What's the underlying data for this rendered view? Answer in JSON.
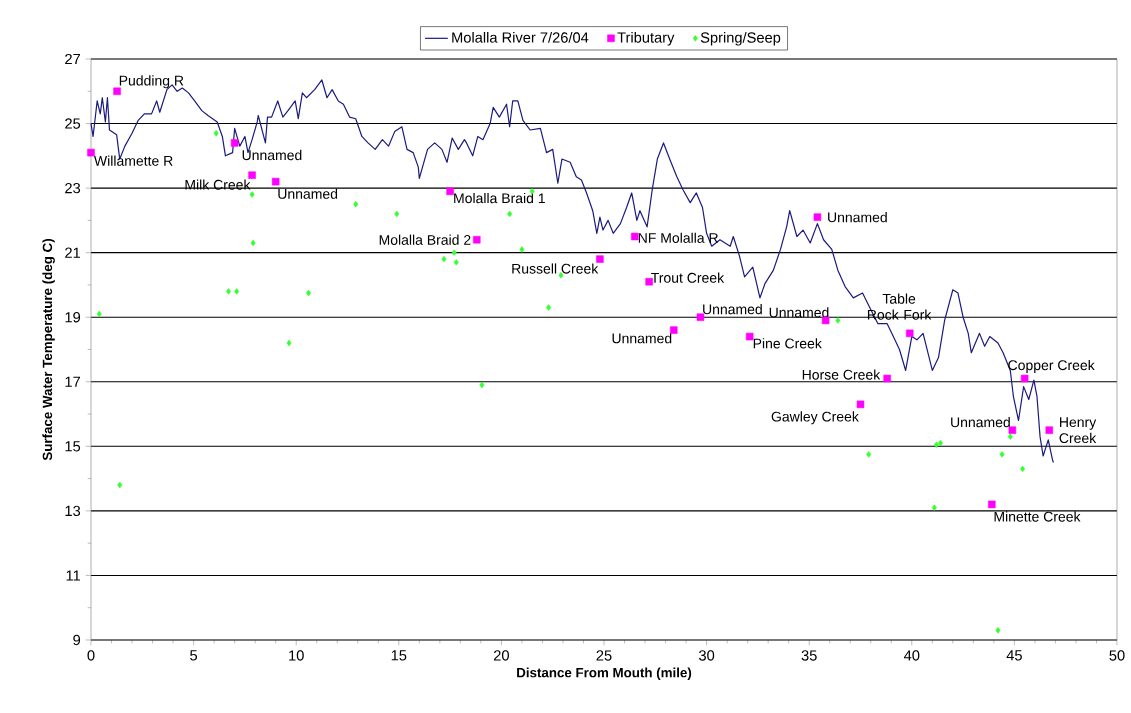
{
  "chart_data": {
    "type": "line",
    "xlabel": "Distance From Mouth (mile)",
    "ylabel": "Surface Water Temperature (deg C)",
    "xlim": [
      0,
      50
    ],
    "ylim": [
      9,
      27
    ],
    "xticks": [
      0,
      5,
      10,
      15,
      20,
      25,
      30,
      35,
      40,
      45,
      50
    ],
    "yticks": [
      9,
      11,
      13,
      15,
      17,
      19,
      21,
      23,
      25,
      27
    ],
    "grid": "y",
    "legend": "top",
    "series": [
      {
        "name": "Molalla River 7/26/04",
        "color": "#1a1a80",
        "marker": "none",
        "line_style": "solid",
        "x": [
          0,
          0.1,
          0.3,
          0.45,
          0.55,
          0.7,
          0.8,
          0.9,
          1.25,
          1.4,
          1.65,
          2.0,
          2.3,
          2.6,
          2.95,
          3.2,
          3.35,
          3.7,
          3.95,
          4.2,
          4.45,
          4.75,
          5.05,
          5.4,
          5.7,
          6.15,
          6.4,
          6.55,
          6.9,
          7.0,
          7.25,
          7.5,
          7.65,
          7.85,
          8.1,
          8.15,
          8.5,
          8.6,
          8.8,
          9.1,
          9.35,
          9.6,
          9.95,
          10.1,
          10.3,
          10.5,
          10.9,
          11.25,
          11.5,
          11.75,
          12.05,
          12.3,
          12.6,
          12.9,
          13.2,
          13.5,
          13.85,
          14.2,
          14.5,
          14.8,
          15.15,
          15.4,
          15.7,
          15.95,
          16.0,
          16.4,
          16.75,
          17.1,
          17.35,
          17.6,
          17.9,
          18.2,
          18.3,
          18.6,
          18.85,
          19.1,
          19.45,
          19.6,
          19.9,
          20.25,
          20.4,
          20.55,
          20.8,
          21.05,
          21.4,
          21.9,
          22.2,
          22.5,
          22.75,
          22.95,
          23.35,
          23.65,
          23.9,
          24.15,
          24.45,
          24.65,
          24.8,
          24.95,
          25.2,
          25.45,
          25.8,
          26.1,
          26.35,
          26.6,
          26.75,
          27.1,
          27.35,
          27.6,
          27.9,
          28.2,
          28.55,
          28.85,
          29.2,
          29.5,
          29.8,
          30.0,
          30.25,
          30.65,
          31.15,
          31.3,
          31.6,
          31.85,
          32.25,
          32.6,
          32.85,
          33.25,
          33.6,
          33.9,
          34.05,
          34.4,
          34.7,
          35.05,
          35.4,
          35.7,
          36.1,
          36.4,
          36.75,
          37.15,
          37.6,
          37.95,
          38.35,
          38.8,
          39.1,
          39.4,
          39.7,
          40.0,
          40.25,
          40.55,
          41.0,
          41.3,
          41.6,
          42.0,
          42.25,
          42.5,
          42.75,
          42.9,
          43.3,
          43.55,
          43.8,
          44.2,
          44.45,
          44.8,
          44.95,
          45.2,
          45.45,
          45.7,
          45.95,
          46.1,
          46.25,
          46.4,
          46.65,
          46.85,
          46.9
        ],
        "values": [
          25.0,
          24.6,
          25.7,
          25.3,
          25.8,
          25.05,
          25.8,
          24.8,
          24.65,
          23.9,
          24.3,
          24.7,
          25.1,
          25.3,
          25.3,
          25.7,
          25.35,
          26.05,
          26.2,
          26.0,
          26.1,
          25.95,
          25.7,
          25.4,
          25.25,
          25.05,
          24.6,
          24.0,
          24.1,
          24.85,
          24.3,
          24.6,
          24.1,
          24.5,
          25.05,
          25.25,
          24.4,
          25.2,
          25.2,
          25.7,
          25.2,
          25.4,
          25.7,
          25.15,
          25.95,
          25.8,
          26.05,
          26.35,
          25.8,
          26.05,
          25.7,
          25.6,
          25.2,
          25.15,
          24.6,
          24.4,
          24.2,
          24.5,
          24.3,
          24.75,
          24.9,
          24.2,
          24.1,
          23.65,
          23.3,
          24.2,
          24.4,
          24.2,
          23.8,
          24.55,
          24.2,
          24.5,
          24.4,
          24.0,
          24.6,
          24.5,
          25.0,
          25.5,
          25.2,
          25.6,
          24.9,
          25.7,
          25.7,
          25.1,
          24.8,
          24.85,
          24.1,
          24.2,
          23.15,
          23.9,
          23.8,
          23.35,
          23.25,
          22.85,
          22.3,
          21.6,
          22.1,
          21.7,
          22.0,
          21.6,
          21.9,
          22.4,
          22.85,
          22.0,
          22.3,
          21.8,
          22.95,
          23.9,
          24.4,
          23.9,
          23.35,
          22.95,
          22.55,
          22.85,
          22.4,
          21.6,
          21.2,
          21.4,
          21.2,
          21.5,
          20.9,
          20.25,
          20.55,
          19.6,
          20.05,
          20.45,
          21.1,
          21.8,
          22.3,
          21.5,
          21.7,
          21.3,
          21.9,
          21.4,
          21.1,
          20.45,
          19.95,
          19.6,
          19.75,
          19.3,
          18.8,
          18.8,
          18.4,
          18.0,
          17.35,
          18.4,
          18.3,
          18.5,
          17.35,
          17.75,
          18.9,
          19.85,
          19.75,
          19.0,
          18.5,
          17.9,
          18.5,
          18.1,
          18.4,
          18.2,
          17.9,
          17.35,
          16.55,
          15.8,
          16.85,
          16.45,
          17.05,
          16.55,
          15.3,
          14.7,
          15.2,
          14.6,
          14.5
        ]
      },
      {
        "name": "Tributary",
        "type": "scatter",
        "color": "#ff00ff",
        "marker": "square",
        "x": [
          0,
          1.27,
          7.0,
          7.85,
          9.0,
          17.5,
          18.8,
          24.8,
          26.5,
          27.2,
          28.4,
          29.7,
          32.1,
          35.4,
          35.8,
          39.9,
          38.8,
          37.5,
          45.5,
          44.9,
          46.7,
          43.9
        ],
        "values": [
          24.1,
          26.0,
          24.4,
          23.4,
          23.2,
          22.9,
          21.4,
          20.8,
          21.5,
          20.1,
          18.6,
          19.0,
          18.4,
          22.1,
          18.9,
          18.5,
          17.1,
          16.3,
          17.1,
          15.5,
          15.5,
          13.2
        ]
      },
      {
        "name": "Spring/Seep",
        "type": "scatter",
        "color": "#33ff33",
        "marker": "diamond",
        "x": [
          0.4,
          1.4,
          6.1,
          7.85,
          7.9,
          6.7,
          7.1,
          10.6,
          9.65,
          12.9,
          14.9,
          17.2,
          17.7,
          17.8,
          20.4,
          21.5,
          21.0,
          22.9,
          22.3,
          19.05,
          36.4,
          37.9,
          41.2,
          41.4,
          41.1,
          44.4,
          44.8,
          45.4,
          44.2
        ],
        "values": [
          19.1,
          13.8,
          24.7,
          22.8,
          21.3,
          19.8,
          19.8,
          19.75,
          18.2,
          22.5,
          22.2,
          20.8,
          21.0,
          20.7,
          22.2,
          22.9,
          21.1,
          20.3,
          19.3,
          16.9,
          18.9,
          14.75,
          15.05,
          15.1,
          13.1,
          14.75,
          15.3,
          14.3,
          9.3
        ]
      }
    ],
    "annotations": [
      {
        "text": "Willamette R",
        "x": 0,
        "y": 24.1
      },
      {
        "text": "Pudding R",
        "x": 1.27,
        "y": 26.0
      },
      {
        "text": "Unnamed",
        "x": 7.0,
        "y": 24.4
      },
      {
        "text": "Milk Creek",
        "x": 7.85,
        "y": 23.4
      },
      {
        "text": "Unnamed",
        "x": 9.0,
        "y": 23.2
      },
      {
        "text": "Molalla Braid 1",
        "x": 17.5,
        "y": 22.9
      },
      {
        "text": "Molalla Braid 2",
        "x": 18.8,
        "y": 21.4
      },
      {
        "text": "Russell Creek",
        "x": 24.8,
        "y": 20.8
      },
      {
        "text": "NF Molalla R",
        "x": 26.5,
        "y": 21.5
      },
      {
        "text": "Trout Creek",
        "x": 27.2,
        "y": 20.1
      },
      {
        "text": "Unnamed",
        "x": 28.4,
        "y": 18.6
      },
      {
        "text": "Unnamed",
        "x": 29.7,
        "y": 19.0
      },
      {
        "text": "Pine Creek",
        "x": 32.1,
        "y": 18.4
      },
      {
        "text": "Unnamed",
        "x": 35.4,
        "y": 22.1
      },
      {
        "text": "Unnamed",
        "x": 35.8,
        "y": 18.9
      },
      {
        "text": "Table Rock Fork",
        "x": 39.9,
        "y": 18.5
      },
      {
        "text": "Horse Creek",
        "x": 38.8,
        "y": 17.1
      },
      {
        "text": "Gawley Creek",
        "x": 37.5,
        "y": 16.3
      },
      {
        "text": "Copper Creek",
        "x": 45.5,
        "y": 17.1
      },
      {
        "text": "Unnamed",
        "x": 44.9,
        "y": 15.5
      },
      {
        "text": "Henry Creek",
        "x": 46.7,
        "y": 15.5
      },
      {
        "text": "Minette Creek",
        "x": 43.9,
        "y": 13.2
      }
    ]
  }
}
